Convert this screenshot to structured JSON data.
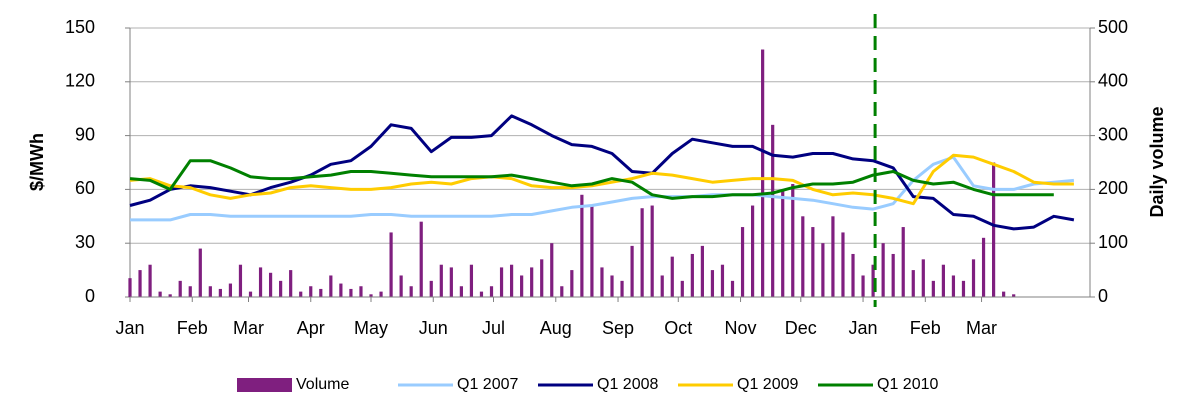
{
  "chart_data": {
    "type": "line",
    "y_label": "$/MWh",
    "y2_label": "Daily volume",
    "xlim": [
      0,
      478
    ],
    "xticks": [
      {
        "value": 0,
        "label": "Jan"
      },
      {
        "value": 31,
        "label": "Feb"
      },
      {
        "value": 59,
        "label": "Mar"
      },
      {
        "value": 90,
        "label": "Apr"
      },
      {
        "value": 120,
        "label": "May"
      },
      {
        "value": 151,
        "label": "Jun"
      },
      {
        "value": 181,
        "label": "Jul"
      },
      {
        "value": 212,
        "label": "Aug"
      },
      {
        "value": 243,
        "label": "Sep"
      },
      {
        "value": 273,
        "label": "Oct"
      },
      {
        "value": 304,
        "label": "Nov"
      },
      {
        "value": 334,
        "label": "Dec"
      },
      {
        "value": 365,
        "label": "Jan"
      },
      {
        "value": 396,
        "label": "Feb"
      },
      {
        "value": 424,
        "label": "Mar"
      }
    ],
    "ylim": [
      0,
      150
    ],
    "yticks": [
      0,
      30,
      60,
      90,
      120,
      150
    ],
    "y2lim": [
      0,
      500
    ],
    "y2ticks": [
      0,
      100,
      200,
      300,
      400,
      500
    ],
    "grid": true,
    "legend": "bottom",
    "vline": {
      "x": 371,
      "color": "#008000"
    },
    "x": [
      0,
      10,
      20,
      30,
      40,
      50,
      60,
      70,
      80,
      90,
      100,
      110,
      120,
      130,
      140,
      150,
      160,
      170,
      180,
      190,
      200,
      210,
      220,
      230,
      240,
      250,
      260,
      270,
      280,
      290,
      300,
      310,
      320,
      330,
      340,
      350,
      360,
      370,
      380,
      390,
      400,
      410,
      420,
      430,
      440,
      450,
      460,
      470
    ],
    "series": [
      {
        "name": "Volume",
        "type": "bar",
        "axis": "y2",
        "color": "#7f1f7f",
        "x": [
          0,
          5,
          10,
          15,
          20,
          25,
          30,
          35,
          40,
          45,
          50,
          55,
          60,
          65,
          70,
          75,
          80,
          85,
          90,
          95,
          100,
          105,
          110,
          115,
          120,
          125,
          130,
          135,
          140,
          145,
          150,
          155,
          160,
          165,
          170,
          175,
          180,
          185,
          190,
          195,
          200,
          205,
          210,
          215,
          220,
          225,
          230,
          235,
          240,
          245,
          250,
          255,
          260,
          265,
          270,
          275,
          280,
          285,
          290,
          295,
          300,
          305,
          310,
          315,
          320,
          325,
          330,
          335,
          340,
          345,
          350,
          355,
          360,
          365,
          370,
          375,
          380,
          385,
          390,
          395,
          400,
          405,
          410,
          415,
          420,
          425,
          430,
          435,
          440
        ],
        "values": [
          35,
          50,
          60,
          10,
          5,
          30,
          20,
          90,
          20,
          15,
          25,
          60,
          10,
          55,
          45,
          30,
          50,
          10,
          20,
          15,
          40,
          25,
          15,
          20,
          5,
          10,
          120,
          40,
          20,
          140,
          30,
          60,
          55,
          20,
          60,
          10,
          20,
          55,
          60,
          40,
          55,
          70,
          100,
          20,
          50,
          190,
          170,
          55,
          40,
          30,
          95,
          165,
          170,
          40,
          75,
          30,
          80,
          95,
          50,
          60,
          30,
          130,
          170,
          460,
          320,
          200,
          210,
          150,
          130,
          100,
          150,
          120,
          80,
          40,
          60,
          100,
          80,
          130,
          50,
          70,
          30,
          60,
          40,
          30,
          70,
          110,
          250,
          10,
          5
        ]
      },
      {
        "name": "Q1 2007",
        "color": "#99ccff",
        "values": [
          43,
          43,
          43,
          46,
          46,
          45,
          45,
          45,
          45,
          45,
          45,
          45,
          46,
          46,
          45,
          45,
          45,
          45,
          45,
          46,
          46,
          48,
          50,
          51,
          53,
          55,
          56,
          56,
          56,
          57,
          57,
          57,
          56,
          55,
          54,
          52,
          50,
          49,
          52,
          65,
          74,
          78,
          62,
          60,
          60,
          63,
          64,
          65
        ]
      },
      {
        "name": "Q1 2008",
        "color": "#000080",
        "values": [
          51,
          54,
          60,
          62,
          61,
          59,
          57,
          61,
          64,
          68,
          74,
          76,
          84,
          96,
          94,
          81,
          89,
          89,
          90,
          101,
          96,
          90,
          85,
          84,
          80,
          70,
          69,
          80,
          88,
          86,
          84,
          84,
          79,
          78,
          80,
          80,
          77,
          76,
          72,
          56,
          55,
          46,
          45,
          40,
          38,
          39,
          45,
          43
        ]
      },
      {
        "name": "Q1 2009",
        "color": "#ffcc00",
        "values": [
          65,
          66,
          62,
          61,
          57,
          55,
          57,
          58,
          61,
          62,
          61,
          60,
          60,
          61,
          63,
          64,
          63,
          66,
          67,
          66,
          62,
          61,
          61,
          62,
          64,
          66,
          69,
          68,
          66,
          64,
          65,
          66,
          66,
          65,
          60,
          57,
          58,
          57,
          55,
          52,
          70,
          79,
          78,
          74,
          70,
          64,
          63,
          63
        ]
      },
      {
        "name": "Q1 2010",
        "color": "#008000",
        "values": [
          66,
          65,
          60,
          76,
          76,
          72,
          67,
          66,
          66,
          67,
          68,
          70,
          70,
          69,
          68,
          67,
          67,
          67,
          67,
          68,
          66,
          64,
          62,
          63,
          66,
          64,
          57,
          55,
          56,
          56,
          57,
          57,
          58,
          61,
          63,
          63,
          64,
          68,
          70,
          65,
          63,
          64,
          60,
          57,
          57,
          57,
          57,
          null
        ]
      }
    ]
  }
}
